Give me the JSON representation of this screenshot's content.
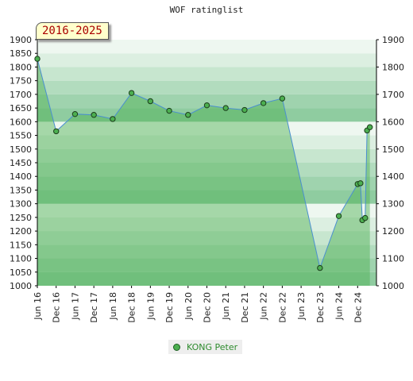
{
  "chart_data": {
    "type": "line",
    "title": "WOF ratinglist",
    "period_label": "2016-2025",
    "xlabel": "",
    "ylabel": "",
    "ylim": [
      1000,
      1900
    ],
    "yticks": [
      1000,
      1050,
      1100,
      1150,
      1200,
      1250,
      1300,
      1350,
      1400,
      1450,
      1500,
      1550,
      1600,
      1650,
      1700,
      1750,
      1800,
      1850,
      1900
    ],
    "yticks_right": [
      1000,
      1100,
      1200,
      1300,
      1400,
      1500,
      1600,
      1700,
      1800,
      1900
    ],
    "xticks": [
      "Jun 16",
      "Dec 16",
      "Jun 17",
      "Dec 17",
      "Jun 18",
      "Dec 18",
      "Jun 19",
      "Dec 19",
      "Jun 20",
      "Dec 20",
      "Jun 21",
      "Dec 21",
      "Jun 22",
      "Dec 22",
      "Jun 23",
      "Dec 23",
      "Jun 24",
      "Dec 24"
    ],
    "grid": true,
    "legend_position": "bottom",
    "series": [
      {
        "name": "KONG Peter",
        "color": "#4caf50",
        "points": [
          {
            "x": 0,
            "y": 1830
          },
          {
            "x": 1,
            "y": 1565
          },
          {
            "x": 2,
            "y": 1628
          },
          {
            "x": 3,
            "y": 1625
          },
          {
            "x": 4,
            "y": 1610
          },
          {
            "x": 5,
            "y": 1705
          },
          {
            "x": 6,
            "y": 1675
          },
          {
            "x": 7,
            "y": 1640
          },
          {
            "x": 8,
            "y": 1625
          },
          {
            "x": 9,
            "y": 1660
          },
          {
            "x": 10,
            "y": 1650
          },
          {
            "x": 11,
            "y": 1643
          },
          {
            "x": 12,
            "y": 1668
          },
          {
            "x": 13,
            "y": 1685
          },
          {
            "x": 15,
            "y": 1065
          },
          {
            "x": 16,
            "y": 1255
          },
          {
            "x": 17,
            "y": 1372
          },
          {
            "x": 17.15,
            "y": 1375
          },
          {
            "x": 17.25,
            "y": 1240
          },
          {
            "x": 17.4,
            "y": 1248
          },
          {
            "x": 17.5,
            "y": 1568
          },
          {
            "x": 17.65,
            "y": 1580
          }
        ]
      }
    ]
  }
}
